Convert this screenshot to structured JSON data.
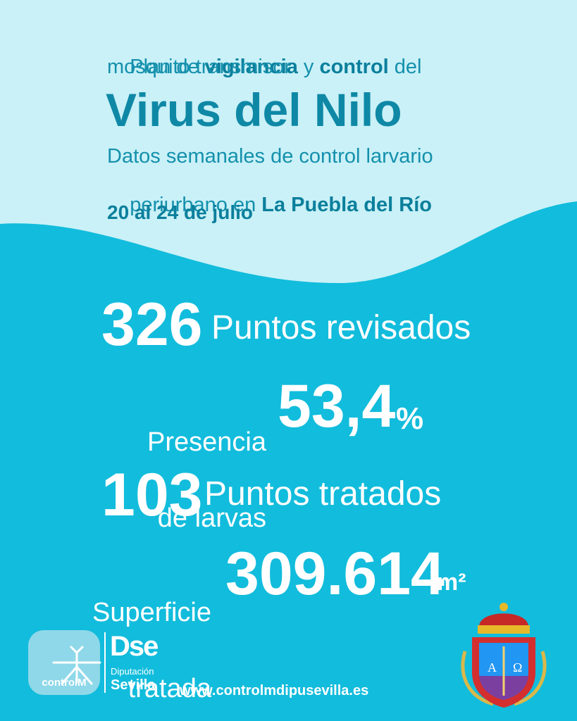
{
  "header": {
    "line1": [
      "Plan de ",
      "vigilancia",
      " y ",
      "control",
      " del"
    ],
    "line2": "mosquito transmisor",
    "title": "Virus del Nilo",
    "subtitle_line1": "Datos semanales de control larvario",
    "subtitle_line2": [
      "periurbano en ",
      "La Puebla del Río"
    ],
    "dates": "20 al 24 de julio"
  },
  "stats": [
    {
      "value": "326",
      "label": "Puntos revisados"
    },
    {
      "label_lines": [
        "Presencia",
        "de larvas"
      ],
      "value": "53,4",
      "unit": "%"
    },
    {
      "value": "103",
      "label": "Puntos tratados"
    },
    {
      "label_lines": [
        "Superficie",
        "tratada"
      ],
      "value": "309.614",
      "unit": "m²"
    }
  ],
  "footer": {
    "controlm_logo": "controlM",
    "dipu_logo": [
      "Dse",
      "Diputación",
      "Sevilla"
    ],
    "url": "www.controlmdipusevilla.es",
    "shield_letters": [
      "A",
      "Ω"
    ]
  }
}
